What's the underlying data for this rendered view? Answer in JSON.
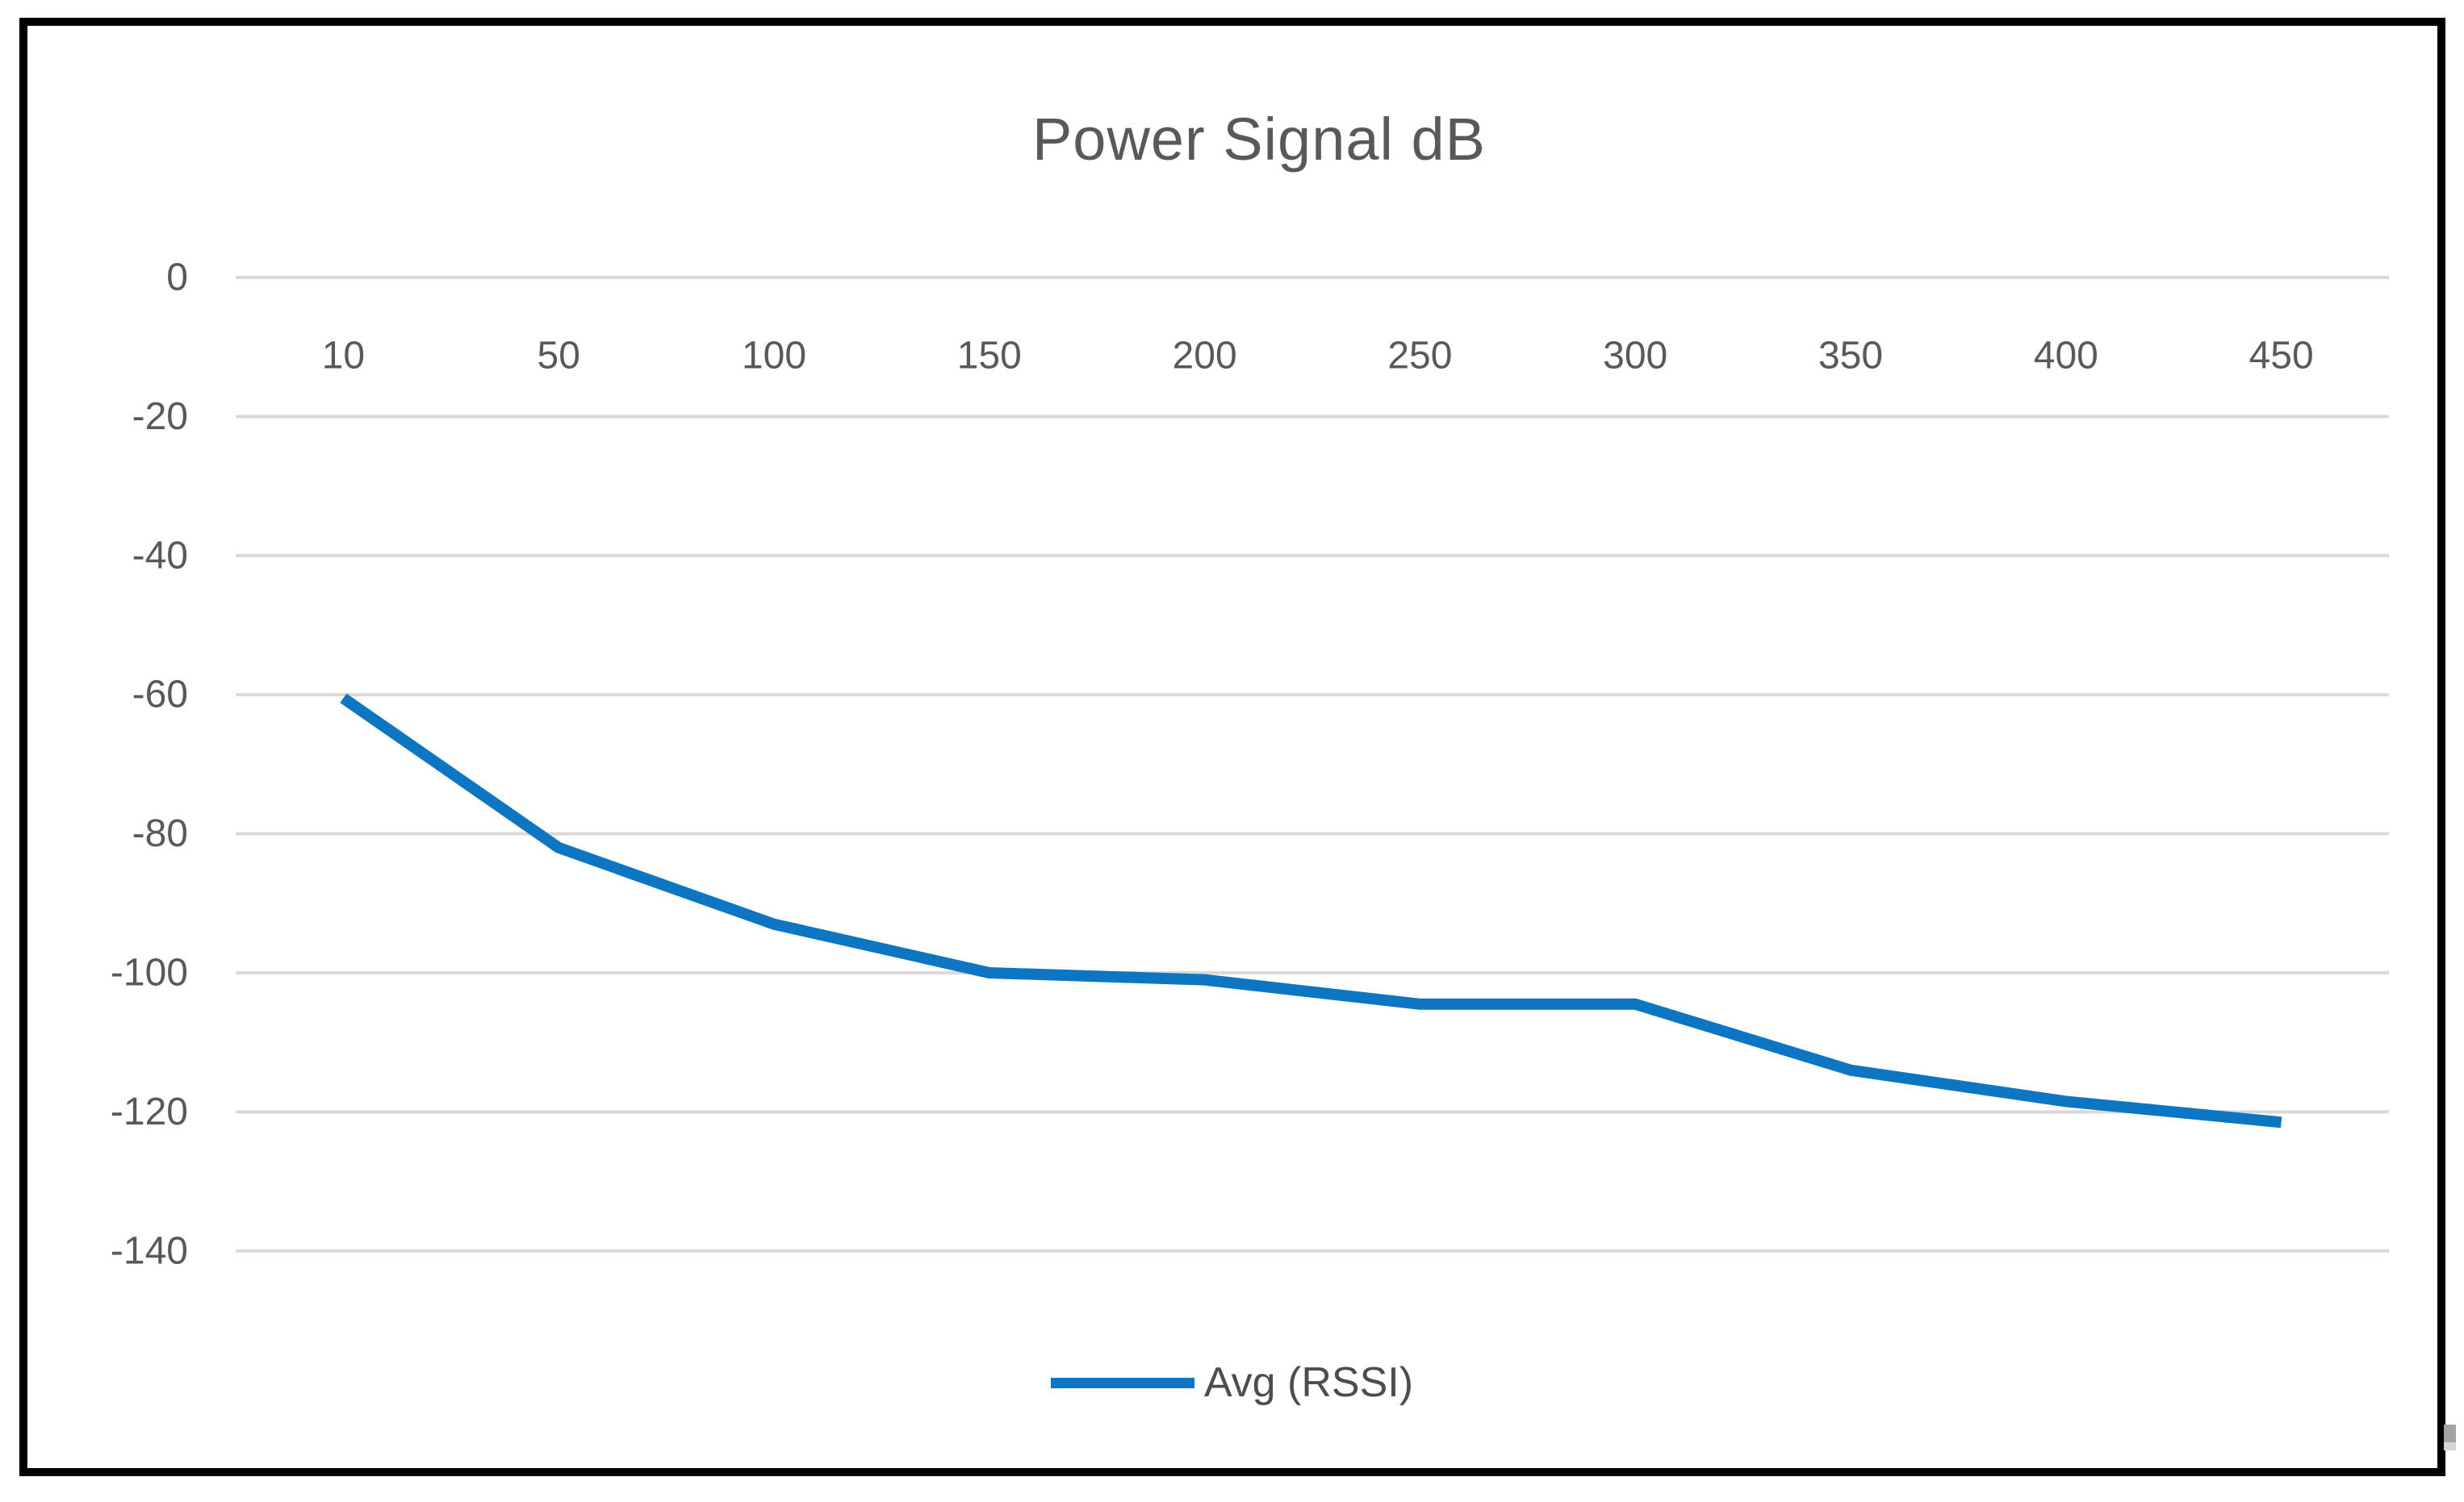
{
  "chart_data": {
    "type": "line",
    "title": "Power Signal dB",
    "categories": [
      10,
      50,
      100,
      150,
      200,
      250,
      300,
      350,
      400,
      450
    ],
    "series": [
      {
        "name": "Avg (RSSI)",
        "values": [
          -60.5,
          -82,
          -93,
          -100,
          -101,
          -104.5,
          -104.5,
          -114,
          -118.5,
          -121.5
        ]
      }
    ],
    "xlabel": "",
    "ylabel": "",
    "ylim": [
      -140,
      0
    ],
    "yticks": [
      0,
      -20,
      -40,
      -60,
      -80,
      -100,
      -120,
      -140
    ],
    "grid": "horizontal-only",
    "legend_position": "bottom-center",
    "colors": {
      "line": "#0c76c2",
      "gridline": "#d9d9d9",
      "tick_text": "#595959",
      "title_text": "#595959",
      "legend_text": "#4d4d4d",
      "frame": "#000000",
      "background": "#ffffff"
    }
  }
}
